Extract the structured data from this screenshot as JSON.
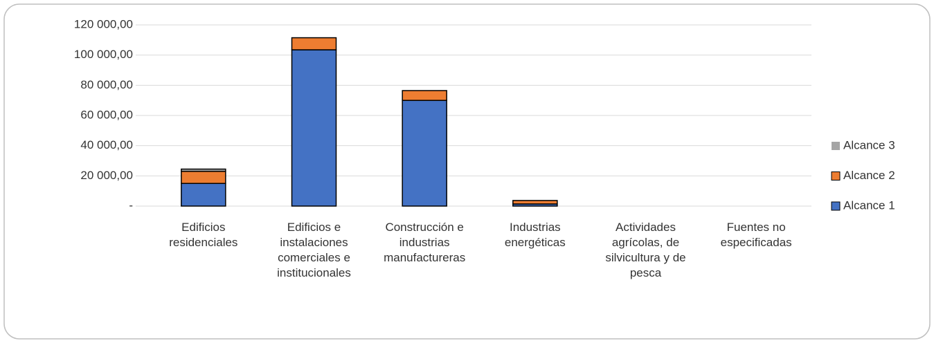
{
  "chart_data": {
    "type": "stacked_bar",
    "categories": [
      "Edificios residenciales",
      "Edificios e instalaciones comerciales e institucionales",
      "Construcción e industrias manufactureras",
      "Industrias energéticas",
      "Actividades agrícolas, de silvicultura y de pesca",
      "Fuentes no especificadas"
    ],
    "series": [
      {
        "name": "Alcance 1",
        "color": "#4472c4",
        "values": [
          15000,
          103500,
          70000,
          1400,
          0,
          0
        ]
      },
      {
        "name": "Alcance 2",
        "color": "#ed7d31",
        "values": [
          8000,
          8000,
          6500,
          2300,
          0,
          0
        ]
      },
      {
        "name": "Alcance 3",
        "color": "#a5a5a5",
        "values": [
          1500,
          0,
          0,
          0,
          0,
          0
        ]
      }
    ],
    "ylim": [
      0,
      120000
    ],
    "yticks": [
      {
        "value": 0,
        "label": "-"
      },
      {
        "value": 20000,
        "label": "20 000,00"
      },
      {
        "value": 40000,
        "label": "40 000,00"
      },
      {
        "value": 60000,
        "label": "60 000,00"
      },
      {
        "value": 80000,
        "label": "80 000,00"
      },
      {
        "value": 100000,
        "label": "100 000,00"
      },
      {
        "value": 120000,
        "label": "120 000,00"
      }
    ],
    "grid": true,
    "legend": "right"
  }
}
